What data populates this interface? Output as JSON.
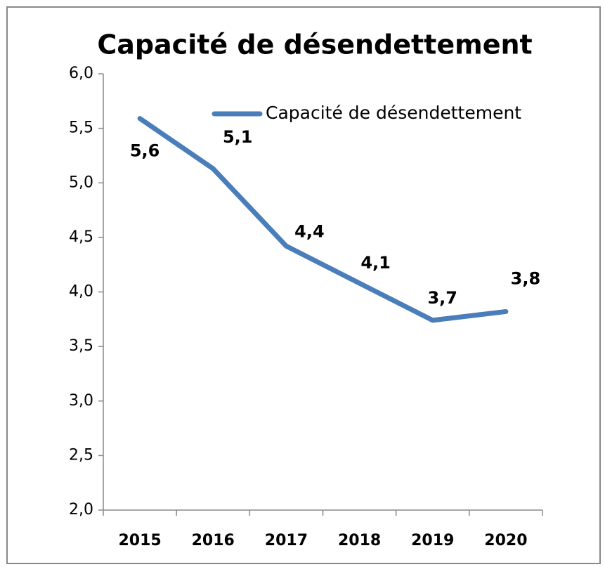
{
  "chart_data": {
    "type": "line",
    "title": "Capacité de désendettement",
    "categories": [
      "2015",
      "2016",
      "2017",
      "2018",
      "2019",
      "2020"
    ],
    "series": [
      {
        "name": "Capacité de désendettement",
        "color": "#4a7ebb",
        "values": [
          5.59,
          5.13,
          4.42,
          4.08,
          3.74,
          3.82
        ],
        "value_labels": [
          "5,6",
          "5,1",
          "4,4",
          "4,1",
          "3,7",
          "3,8"
        ]
      }
    ],
    "ylim": [
      2.0,
      6.0
    ],
    "yticks": [
      {
        "value": 2.0,
        "label": "2,0"
      },
      {
        "value": 2.5,
        "label": "2,5"
      },
      {
        "value": 3.0,
        "label": "3,0"
      },
      {
        "value": 3.5,
        "label": "3,5"
      },
      {
        "value": 4.0,
        "label": "4,0"
      },
      {
        "value": 4.5,
        "label": "4,5"
      },
      {
        "value": 5.0,
        "label": "5,0"
      },
      {
        "value": 5.5,
        "label": "5,5"
      },
      {
        "value": 6.0,
        "label": "6,0"
      }
    ],
    "grid": false,
    "legend": "upper right"
  }
}
